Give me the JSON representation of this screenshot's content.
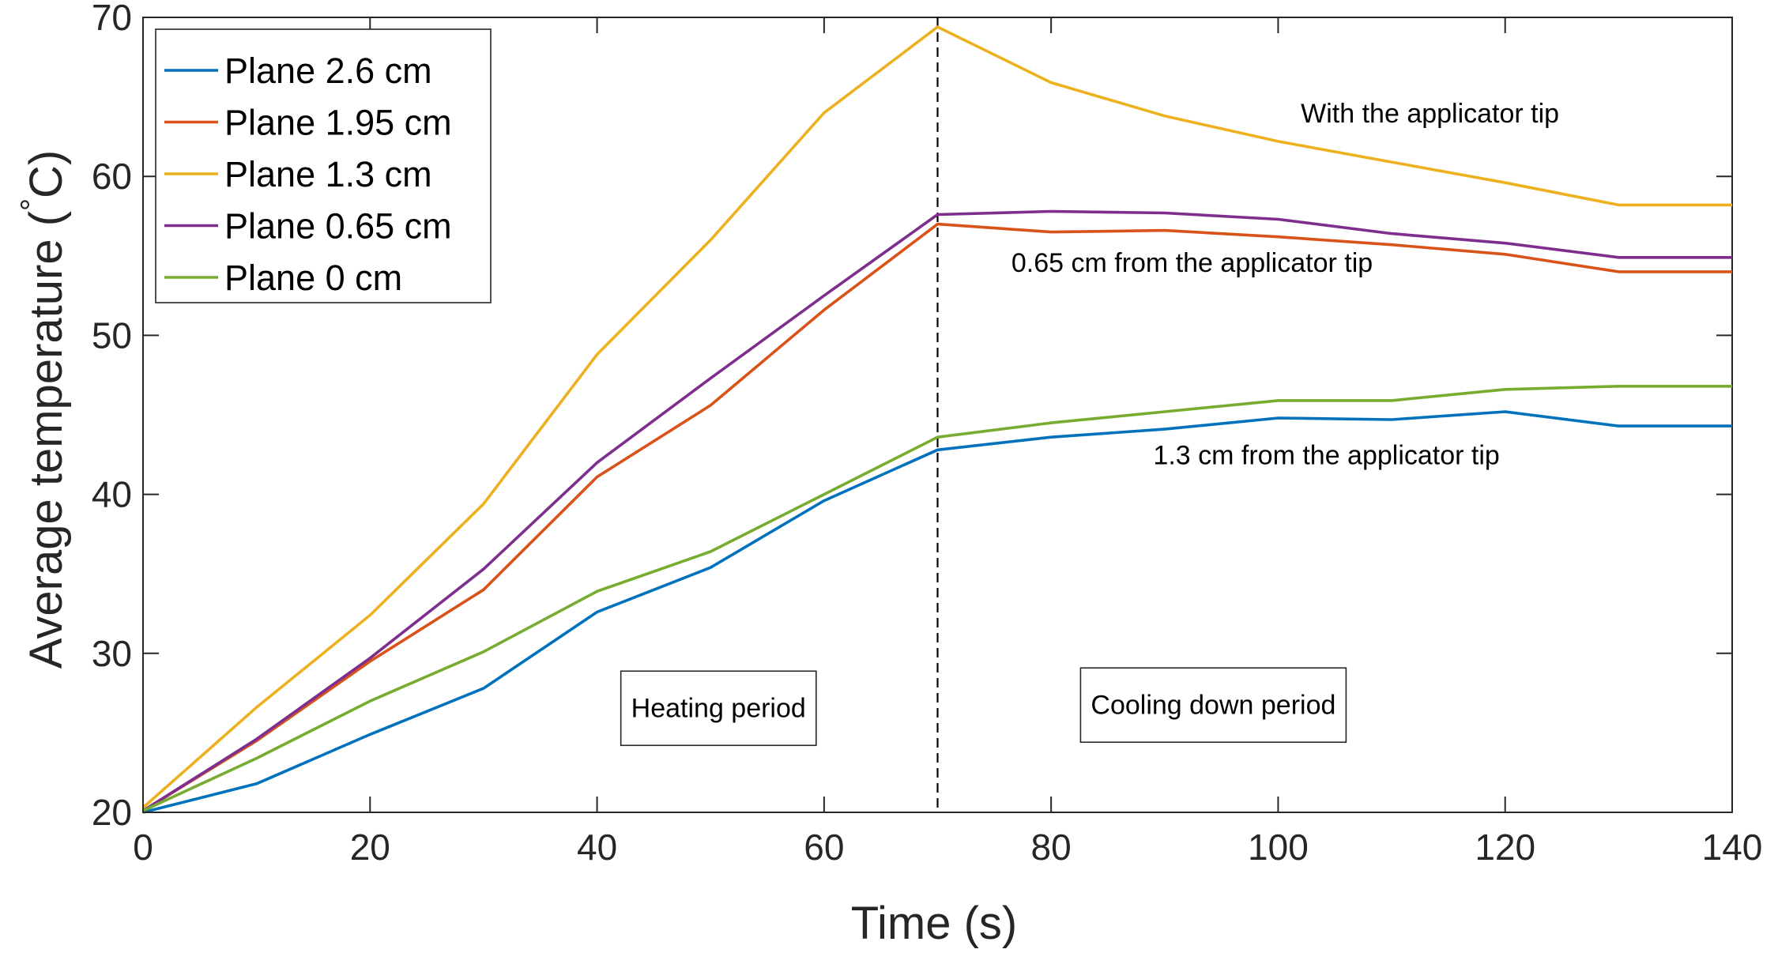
{
  "chart_data": {
    "type": "line",
    "title": "",
    "xlabel": "Time (s)",
    "ylabel_main": "Average temperature (",
    "ylabel_degree": "°",
    "ylabel_unit": "C)",
    "xlim": [
      0,
      140
    ],
    "ylim": [
      20,
      70
    ],
    "xticks": [
      0,
      20,
      40,
      60,
      80,
      100,
      120,
      140
    ],
    "yticks": [
      20,
      30,
      40,
      50,
      60,
      70
    ],
    "grid": false,
    "legend_position": "top-left",
    "x": [
      0,
      10,
      20,
      30,
      40,
      50,
      60,
      70,
      80,
      90,
      100,
      110,
      120,
      130,
      140
    ],
    "series": [
      {
        "name": "Plane 2.6 cm",
        "color": "#0072BD",
        "values": [
          20.0,
          21.8,
          24.9,
          27.8,
          32.6,
          35.4,
          39.6,
          42.8,
          43.6,
          44.1,
          44.8,
          44.7,
          45.2,
          44.3,
          44.3
        ]
      },
      {
        "name": "Plane 1.95 cm",
        "color": "#D95319",
        "values": [
          20.1,
          24.5,
          29.5,
          34.0,
          41.1,
          45.6,
          51.6,
          57.0,
          56.5,
          56.6,
          56.2,
          55.7,
          55.1,
          54.0,
          54.0
        ]
      },
      {
        "name": "Plane 1.3 cm",
        "color": "#EDB120",
        "values": [
          20.3,
          26.6,
          32.4,
          39.4,
          48.8,
          56.0,
          64.0,
          69.4,
          65.9,
          63.8,
          62.2,
          60.9,
          59.6,
          58.2,
          58.2
        ]
      },
      {
        "name": "Plane 0.65 cm",
        "color": "#7E2F8E",
        "values": [
          20.1,
          24.6,
          29.7,
          35.3,
          42.0,
          47.3,
          52.5,
          57.6,
          57.8,
          57.7,
          57.3,
          56.4,
          55.8,
          54.9,
          54.9
        ]
      },
      {
        "name": "Plane 0 cm",
        "color": "#77AC30",
        "values": [
          20.1,
          23.4,
          27.0,
          30.1,
          33.9,
          36.4,
          40.0,
          43.6,
          44.5,
          45.2,
          45.9,
          45.9,
          46.6,
          46.8,
          46.8
        ]
      }
    ],
    "vline": {
      "x": 70,
      "style": "dashed"
    },
    "annotations": [
      {
        "text": "With the applicator tip",
        "x": 102,
        "y": 63.4,
        "boxed": false
      },
      {
        "text": "0.65 cm from the applicator tip",
        "x": 76.5,
        "y": 54.0,
        "boxed": false
      },
      {
        "text": "1.3 cm from the applicator tip",
        "x": 89,
        "y": 41.9,
        "boxed": false
      },
      {
        "text": "Heating period",
        "x": 43,
        "y": 26.0,
        "boxed": true
      },
      {
        "text": "Cooling down period",
        "x": 83.5,
        "y": 26.2,
        "boxed": true
      }
    ]
  }
}
